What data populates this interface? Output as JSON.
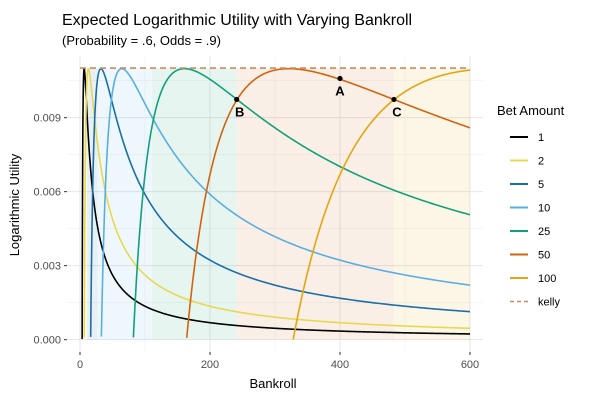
{
  "chart_data": {
    "type": "line",
    "title": "Expected Logarithmic Utility with Varying Bankroll",
    "subtitle": "(Probability = .6, Odds = .9)",
    "xlabel": "Bankroll",
    "ylabel": "Logarithmic Utility",
    "xlim": [
      -20,
      620
    ],
    "ylim": [
      -0.0005,
      0.0115
    ],
    "x_ticks": [
      0,
      200,
      400,
      600
    ],
    "y_ticks": [
      0.0,
      0.003,
      0.006,
      0.009
    ],
    "x_tick_labels": [
      "0",
      "200",
      "400",
      "600"
    ],
    "y_tick_labels": [
      "0.000",
      "0.003",
      "0.006",
      "0.009"
    ],
    "grid": true,
    "legend": {
      "title": "Bet Amount",
      "position": "right",
      "entries": [
        "1",
        "2",
        "5",
        "10",
        "25",
        "50",
        "100",
        "kelly"
      ]
    },
    "probability": 0.6,
    "odds": 0.9,
    "x_max": 600,
    "kelly_utility": 0.01101,
    "series": [
      {
        "name": "1",
        "bet": 1,
        "color": "#000000"
      },
      {
        "name": "2",
        "bet": 2,
        "color": "#e6d94f"
      },
      {
        "name": "5",
        "bet": 5,
        "color": "#1a6fa8"
      },
      {
        "name": "10",
        "bet": 10,
        "color": "#5aaee0"
      },
      {
        "name": "25",
        "bet": 25,
        "color": "#11a07a"
      },
      {
        "name": "50",
        "bet": 50,
        "color": "#d0640f"
      },
      {
        "name": "100",
        "bet": 100,
        "color": "#e6a50f"
      },
      {
        "name": "kelly",
        "color": "#cd8a5a",
        "style": "dashed",
        "value": 0.01101
      }
    ],
    "shaded_regions": [
      {
        "bet": 2,
        "x": [
          4,
          11
        ],
        "color": "#e6d94f"
      },
      {
        "bet": 5,
        "x": [
          11,
          27
        ],
        "color": "#1a6fa8"
      },
      {
        "bet": 10,
        "x": [
          27,
          50
        ],
        "color": "#5aaee0"
      },
      {
        "bet": 10,
        "x": [
          50,
          111
        ],
        "color": "#5aaee0"
      },
      {
        "bet": 25,
        "x": [
          111,
          241
        ],
        "color": "#11a07a"
      },
      {
        "bet": 50,
        "x": [
          241,
          483
        ],
        "color": "#d0640f"
      },
      {
        "bet": 100,
        "x": [
          483,
          600
        ],
        "color": "#e6a50f"
      }
    ],
    "annotations": [
      {
        "label": "A",
        "x": 400,
        "y": 0.01059
      },
      {
        "label": "B",
        "x": 241,
        "y": 0.00974
      },
      {
        "label": "C",
        "x": 483,
        "y": 0.00974
      }
    ]
  }
}
